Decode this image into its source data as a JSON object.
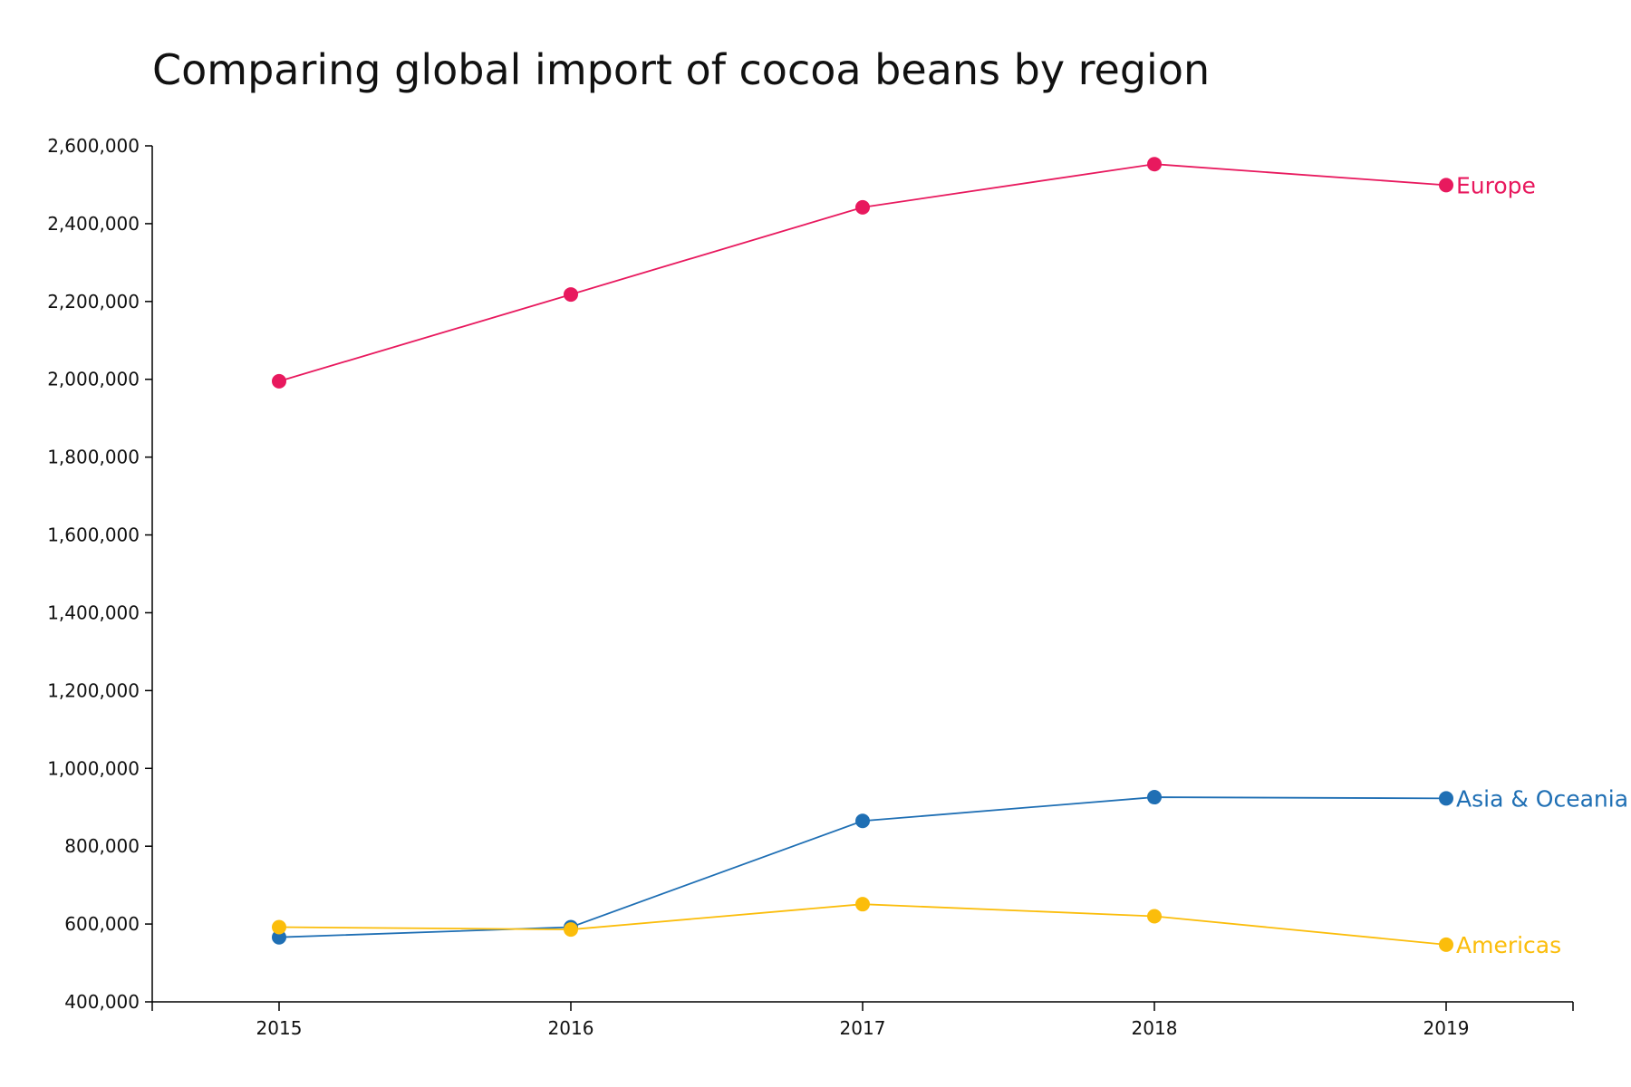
{
  "title": "Comparing global import of cocoa beans by region",
  "chart_data": {
    "type": "line",
    "title": "Comparing global import of cocoa beans by region",
    "xlabel": "",
    "ylabel": "",
    "x": [
      2015,
      2016,
      2017,
      2018,
      2019
    ],
    "x_tick_labels": [
      "2015",
      "2016",
      "2017",
      "2018",
      "2019"
    ],
    "ylim": [
      400000,
      2600000
    ],
    "y_ticks": [
      400000,
      600000,
      800000,
      1000000,
      1200000,
      1400000,
      1600000,
      1800000,
      2000000,
      2200000,
      2400000,
      2600000
    ],
    "y_tick_labels": [
      "400,000",
      "600,000",
      "800,000",
      "1,000,000",
      "1,200,000",
      "1,400,000",
      "1,600,000",
      "1,800,000",
      "2,000,000",
      "2,200,000",
      "2,400,000",
      "2,600,000"
    ],
    "grid": false,
    "legend": "end-of-line labels",
    "series": [
      {
        "name": "Europe",
        "color": "#e8195e",
        "values": [
          1995000,
          2218000,
          2442000,
          2553000,
          2499000
        ]
      },
      {
        "name": "Asia & Oceania",
        "color": "#1f6fb4",
        "values": [
          566000,
          592000,
          865000,
          926000,
          923000
        ]
      },
      {
        "name": "Americas",
        "color": "#fbbd0b",
        "values": [
          592000,
          586000,
          651000,
          620000,
          547000
        ]
      }
    ]
  }
}
